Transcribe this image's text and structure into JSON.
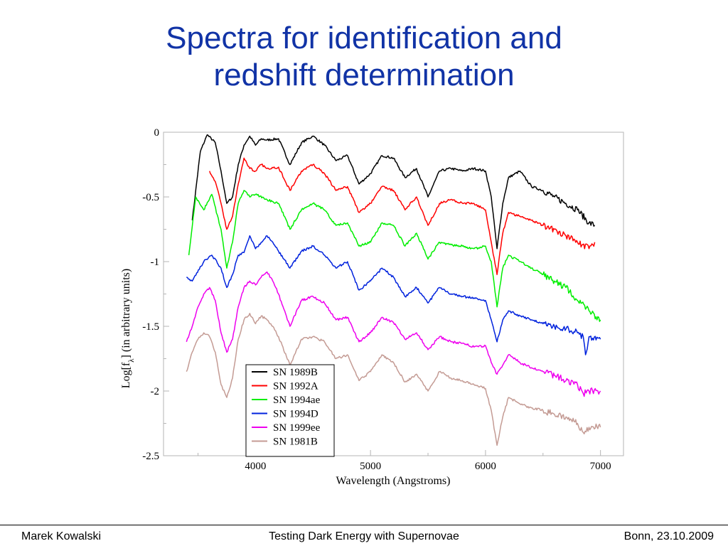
{
  "slide": {
    "title_line1": "Spectra for identification and",
    "title_line2": "redshift determination"
  },
  "footer": {
    "left": "Marek Kowalski",
    "center": "Testing Dark Energy with Supernovae",
    "right": "Bonn, 23.10.2009"
  },
  "chart_data": {
    "type": "line",
    "title": "",
    "xlabel": "Wavelength (Angstroms)",
    "ylabel_prefix": "Log[f",
    "ylabel_sub": "λ",
    "ylabel_suffix": "] (in arbitrary units)",
    "xlim": [
      3200,
      7200
    ],
    "ylim": [
      -2.5,
      0
    ],
    "xticks": [
      4000,
      5000,
      6000,
      7000
    ],
    "xtick_labels": [
      "4000",
      "5000",
      "6000",
      "7000"
    ],
    "yticks": [
      0,
      -0.5,
      -1,
      -1.5,
      -2,
      -2.5
    ],
    "ytick_labels": [
      "0",
      "-0.5",
      "-1",
      "-1.5",
      "-2",
      "-2.5"
    ],
    "grid": false,
    "legend_position": "bottom-center",
    "series": [
      {
        "name": "SN 1989B",
        "color": "#000000",
        "x": [
          3450,
          3520,
          3580,
          3650,
          3700,
          3750,
          3800,
          3850,
          3900,
          3950,
          4000,
          4050,
          4100,
          4200,
          4300,
          4400,
          4500,
          4600,
          4700,
          4800,
          4900,
          5000,
          5100,
          5200,
          5300,
          5400,
          5500,
          5600,
          5700,
          5800,
          5900,
          6000,
          6050,
          6100,
          6150,
          6200,
          6300,
          6400,
          6500,
          6600,
          6700,
          6800,
          6900,
          6950
        ],
        "y": [
          -0.68,
          -0.15,
          -0.02,
          -0.08,
          -0.3,
          -0.55,
          -0.5,
          -0.25,
          -0.1,
          -0.03,
          -0.1,
          -0.05,
          -0.06,
          -0.05,
          -0.25,
          -0.08,
          -0.03,
          -0.1,
          -0.22,
          -0.18,
          -0.4,
          -0.32,
          -0.18,
          -0.2,
          -0.35,
          -0.28,
          -0.5,
          -0.3,
          -0.28,
          -0.3,
          -0.28,
          -0.3,
          -0.5,
          -0.9,
          -0.55,
          -0.35,
          -0.3,
          -0.42,
          -0.45,
          -0.5,
          -0.55,
          -0.6,
          -0.7,
          -0.72
        ]
      },
      {
        "name": "SN 1992A",
        "color": "#ff0000",
        "x": [
          3600,
          3650,
          3700,
          3750,
          3800,
          3850,
          3900,
          3950,
          4000,
          4050,
          4100,
          4200,
          4300,
          4400,
          4500,
          4600,
          4700,
          4800,
          4900,
          5000,
          5100,
          5200,
          5300,
          5400,
          5500,
          5600,
          5700,
          5800,
          5900,
          6000,
          6050,
          6100,
          6150,
          6200,
          6300,
          6400,
          6500,
          6600,
          6700,
          6800,
          6900,
          6950
        ],
        "y": [
          -0.3,
          -0.38,
          -0.55,
          -0.75,
          -0.65,
          -0.4,
          -0.2,
          -0.28,
          -0.3,
          -0.25,
          -0.28,
          -0.27,
          -0.45,
          -0.3,
          -0.25,
          -0.32,
          -0.45,
          -0.42,
          -0.62,
          -0.55,
          -0.42,
          -0.45,
          -0.6,
          -0.5,
          -0.72,
          -0.55,
          -0.52,
          -0.55,
          -0.55,
          -0.6,
          -0.85,
          -1.1,
          -0.78,
          -0.62,
          -0.65,
          -0.68,
          -0.72,
          -0.75,
          -0.8,
          -0.85,
          -0.9,
          -0.85
        ]
      },
      {
        "name": "SN 1994ae",
        "color": "#00ee00",
        "x": [
          3420,
          3480,
          3550,
          3620,
          3700,
          3750,
          3800,
          3850,
          3900,
          3950,
          4000,
          4100,
          4200,
          4300,
          4400,
          4500,
          4600,
          4700,
          4800,
          4900,
          5000,
          5100,
          5200,
          5300,
          5400,
          5500,
          5600,
          5700,
          5800,
          5900,
          6000,
          6050,
          6100,
          6150,
          6200,
          6300,
          6400,
          6500,
          6600,
          6700,
          6800,
          6900,
          7000
        ],
        "y": [
          -0.95,
          -0.5,
          -0.6,
          -0.48,
          -0.75,
          -1.05,
          -0.85,
          -0.55,
          -0.45,
          -0.5,
          -0.48,
          -0.52,
          -0.55,
          -0.75,
          -0.6,
          -0.55,
          -0.6,
          -0.72,
          -0.7,
          -0.88,
          -0.85,
          -0.7,
          -0.72,
          -0.88,
          -0.78,
          -0.98,
          -0.85,
          -0.87,
          -0.88,
          -0.9,
          -0.88,
          -1.0,
          -1.35,
          -1.05,
          -0.95,
          -1.0,
          -1.05,
          -1.1,
          -1.15,
          -1.2,
          -1.3,
          -1.38,
          -1.45
        ]
      },
      {
        "name": "SN 1994D",
        "color": "#0022dd",
        "x": [
          3400,
          3450,
          3550,
          3620,
          3700,
          3750,
          3800,
          3850,
          3900,
          3950,
          4000,
          4050,
          4100,
          4150,
          4200,
          4300,
          4400,
          4500,
          4600,
          4700,
          4800,
          4900,
          5000,
          5100,
          5200,
          5300,
          5400,
          5500,
          5600,
          5700,
          5800,
          5900,
          6000,
          6050,
          6100,
          6150,
          6200,
          6300,
          6400,
          6500,
          6600,
          6700,
          6800,
          6850,
          6870,
          6900,
          7000
        ],
        "y": [
          -1.12,
          -1.15,
          -1.0,
          -0.95,
          -1.05,
          -1.2,
          -1.1,
          -0.95,
          -0.93,
          -0.8,
          -0.9,
          -0.85,
          -0.8,
          -0.85,
          -0.92,
          -1.05,
          -0.92,
          -0.88,
          -0.95,
          -1.05,
          -1.0,
          -1.22,
          -1.15,
          -1.05,
          -1.12,
          -1.27,
          -1.2,
          -1.32,
          -1.2,
          -1.25,
          -1.27,
          -1.28,
          -1.3,
          -1.45,
          -1.62,
          -1.45,
          -1.38,
          -1.42,
          -1.45,
          -1.48,
          -1.5,
          -1.52,
          -1.55,
          -1.58,
          -1.72,
          -1.58,
          -1.6
        ]
      },
      {
        "name": "SN 1999ee",
        "color": "#ee00ee",
        "x": [
          3400,
          3450,
          3500,
          3550,
          3600,
          3650,
          3700,
          3750,
          3800,
          3850,
          3900,
          3950,
          4000,
          4050,
          4100,
          4150,
          4200,
          4300,
          4400,
          4500,
          4600,
          4700,
          4800,
          4900,
          5000,
          5100,
          5200,
          5300,
          5400,
          5500,
          5600,
          5700,
          5800,
          5900,
          6000,
          6050,
          6100,
          6150,
          6200,
          6300,
          6400,
          6500,
          6600,
          6700,
          6800,
          6850,
          6900,
          7000
        ],
        "y": [
          -1.62,
          -1.5,
          -1.35,
          -1.25,
          -1.2,
          -1.3,
          -1.55,
          -1.7,
          -1.6,
          -1.35,
          -1.2,
          -1.15,
          -1.18,
          -1.12,
          -1.08,
          -1.15,
          -1.25,
          -1.5,
          -1.3,
          -1.27,
          -1.32,
          -1.45,
          -1.43,
          -1.62,
          -1.55,
          -1.43,
          -1.47,
          -1.6,
          -1.55,
          -1.68,
          -1.58,
          -1.62,
          -1.63,
          -1.66,
          -1.65,
          -1.78,
          -1.87,
          -1.8,
          -1.72,
          -1.78,
          -1.82,
          -1.85,
          -1.88,
          -1.92,
          -1.95,
          -2.02,
          -2.0,
          -2.0
        ]
      },
      {
        "name": "SN 1981B",
        "color": "#c49b94",
        "x": [
          3400,
          3450,
          3500,
          3550,
          3600,
          3650,
          3700,
          3750,
          3800,
          3850,
          3900,
          3950,
          4000,
          4050,
          4100,
          4150,
          4200,
          4300,
          4400,
          4500,
          4600,
          4700,
          4800,
          4900,
          5000,
          5100,
          5200,
          5300,
          5400,
          5500,
          5600,
          5700,
          5800,
          5900,
          6000,
          6050,
          6100,
          6150,
          6200,
          6300,
          6400,
          6500,
          6600,
          6700,
          6800,
          6850,
          6900,
          7000
        ],
        "y": [
          -1.85,
          -1.7,
          -1.6,
          -1.55,
          -1.58,
          -1.7,
          -1.95,
          -2.05,
          -1.9,
          -1.6,
          -1.45,
          -1.4,
          -1.48,
          -1.42,
          -1.45,
          -1.5,
          -1.58,
          -1.8,
          -1.6,
          -1.58,
          -1.62,
          -1.75,
          -1.72,
          -1.92,
          -1.85,
          -1.72,
          -1.78,
          -1.93,
          -1.87,
          -2.0,
          -1.85,
          -1.9,
          -1.92,
          -1.95,
          -1.98,
          -2.15,
          -2.42,
          -2.2,
          -2.05,
          -2.1,
          -2.13,
          -2.15,
          -2.18,
          -2.2,
          -2.25,
          -2.32,
          -2.28,
          -2.28
        ]
      }
    ]
  }
}
